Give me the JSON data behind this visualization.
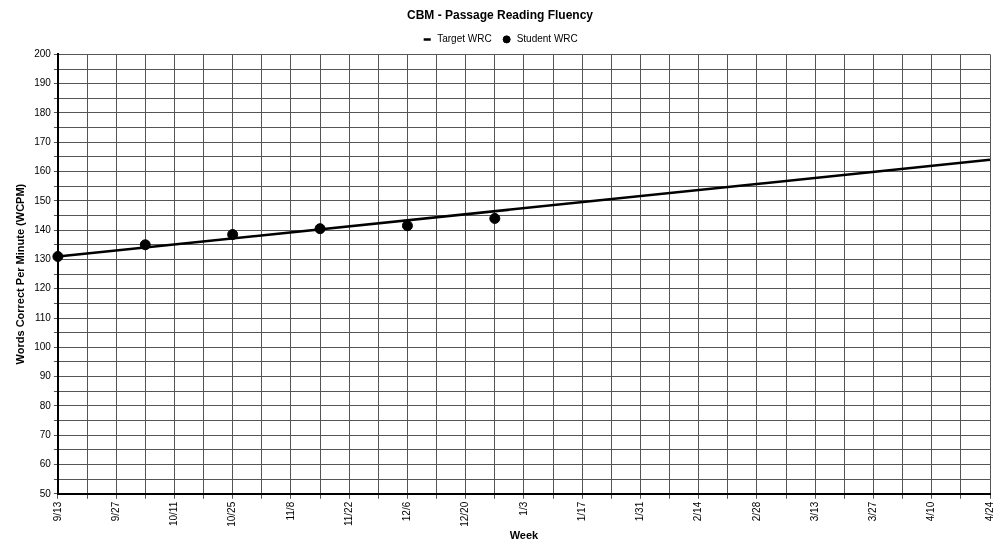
{
  "chart_data": {
    "type": "line",
    "title": "CBM - Passage Reading Fluency",
    "xlabel": "Week",
    "ylabel": "Words Correct Per Minute (WCPM)",
    "categories": [
      "9/13",
      null,
      "9/27",
      null,
      "10/11",
      null,
      "10/25",
      null,
      "11/8",
      null,
      "11/22",
      null,
      "12/6",
      null,
      "12/20",
      null,
      "1/3",
      null,
      "1/17",
      null,
      "1/31",
      null,
      "2/14",
      null,
      "2/28",
      null,
      "3/13",
      null,
      "3/27",
      null,
      "4/10",
      null,
      "4/24"
    ],
    "series": [
      {
        "name": "Target WRC",
        "type": "line",
        "color": "#000000",
        "marker": "none",
        "line_style": "solid",
        "x": [
          "9/13",
          "4/24"
        ],
        "values": [
          131,
          164
        ]
      },
      {
        "name": "Student WRC",
        "type": "scatter",
        "color": "#000000",
        "marker": "circle",
        "values": [
          131,
          null,
          null,
          135,
          null,
          null,
          138.5,
          null,
          null,
          140.5,
          null,
          null,
          141.5,
          null,
          null,
          144,
          null,
          null,
          null,
          null,
          null,
          null,
          null,
          null,
          null,
          null,
          null,
          null,
          null,
          null,
          null,
          null,
          null
        ]
      }
    ],
    "ylim": [
      50,
      200
    ],
    "yticks": [
      50,
      {
        "value": 55,
        "label": null
      },
      60,
      {
        "value": 65,
        "label": null
      },
      70,
      {
        "value": 75,
        "label": null
      },
      80,
      {
        "value": 85,
        "label": null
      },
      90,
      {
        "value": 95,
        "label": null
      },
      100,
      {
        "value": 105,
        "label": null
      },
      110,
      {
        "value": 115,
        "label": null
      },
      120,
      {
        "value": 125,
        "label": null
      },
      130,
      {
        "value": 135,
        "label": null
      },
      140,
      {
        "value": 145,
        "label": null
      },
      150,
      {
        "value": 155,
        "label": null
      },
      160,
      {
        "value": 165,
        "label": null
      },
      170,
      {
        "value": 175,
        "label": null
      },
      180,
      {
        "value": 185,
        "label": null
      },
      190,
      {
        "value": 195,
        "label": null
      },
      200
    ],
    "grid": true,
    "legend": "top"
  }
}
